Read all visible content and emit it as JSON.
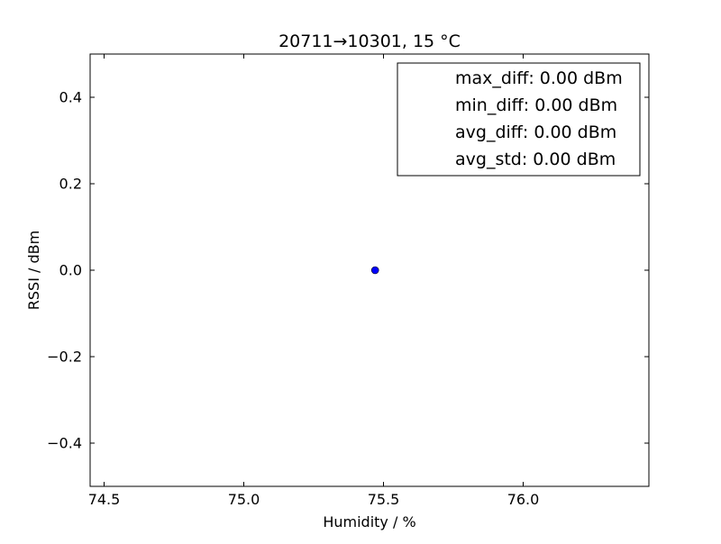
{
  "chart_data": {
    "type": "scatter",
    "title": "20711→10301, 15 °C",
    "xlabel": "Humidity / %",
    "ylabel": "RSSI / dBm",
    "xlim": [
      74.45,
      76.45
    ],
    "ylim": [
      -0.5,
      0.5
    ],
    "xticks": [
      74.5,
      75.0,
      75.5,
      76.0
    ],
    "xtick_labels": [
      "74.5",
      "75.0",
      "75.5",
      "76.0"
    ],
    "yticks": [
      0.4,
      0.2,
      0.0,
      -0.2,
      -0.4
    ],
    "ytick_labels": [
      "0.4",
      "0.2",
      "0.0",
      "−0.2",
      "−0.4"
    ],
    "grid": false,
    "legend_position": "top-right",
    "legend": [
      "max_diff: 0.00 dBm",
      "min_diff: 0.00 dBm",
      "avg_diff: 0.00 dBm",
      "avg_std: 0.00 dBm"
    ],
    "series": [
      {
        "color": "#0000ff",
        "points": [
          {
            "x": 75.47,
            "y": 0.0
          }
        ]
      }
    ]
  }
}
